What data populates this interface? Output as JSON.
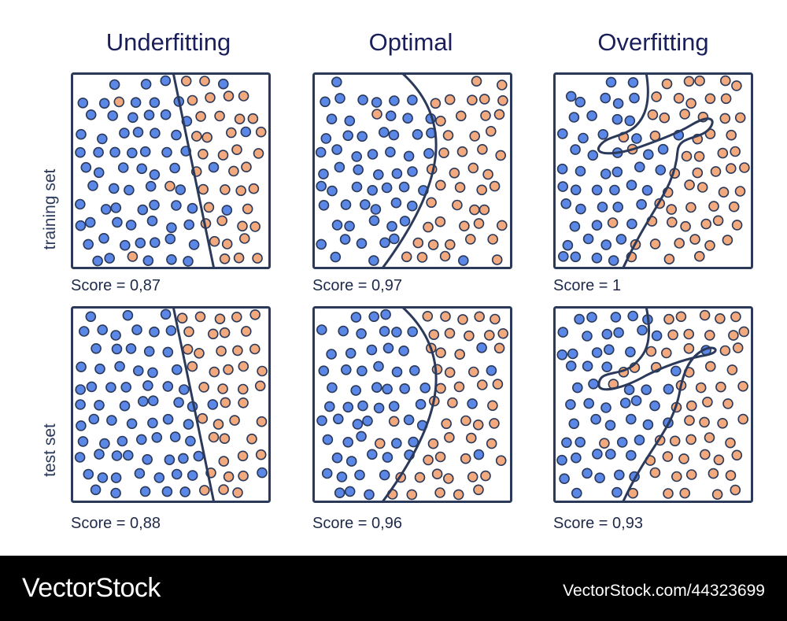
{
  "titles": {
    "underfitting": "Underfitting",
    "optimal": "Optimal",
    "overfitting": "Overfitting"
  },
  "rows": {
    "train": "training set",
    "test": "test set"
  },
  "scores": {
    "train_under": "Score = 0,87",
    "train_opt": "Score = 0,97",
    "train_over": "Score = 1",
    "test_under": "Score = 0,88",
    "test_opt": "Score = 0,96",
    "test_over": "Score = 0,93"
  },
  "colors": {
    "class_a": "#5b87e6",
    "class_b": "#f2a97e",
    "outline": "#2b3a5a",
    "title": "#1a1f5c"
  },
  "footer": {
    "brand": "VectorStock",
    "stock_id": "VectorStock.com/44323699"
  }
}
